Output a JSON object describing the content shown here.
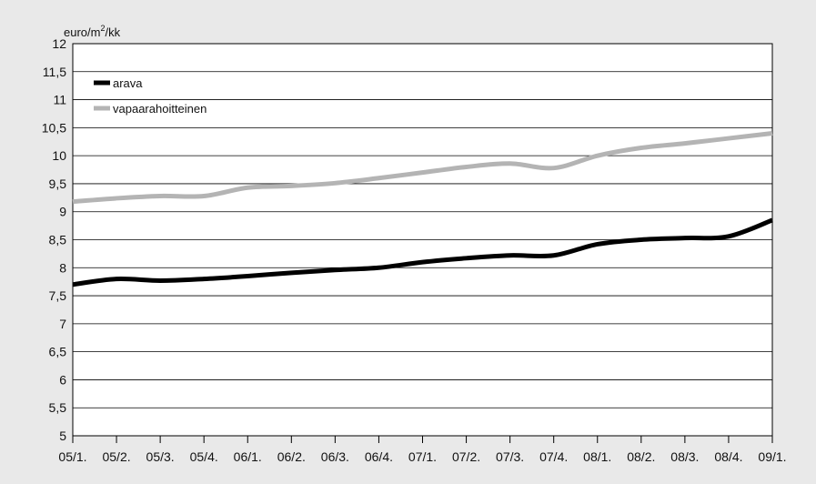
{
  "chart_data": {
    "type": "line",
    "ylabel_html": "euro/m²/kk",
    "ylabel": "euro/m2/kk",
    "y_unit_main": "euro/m",
    "y_unit_sup": "2",
    "y_unit_tail": "/kk",
    "ylim": [
      5,
      12
    ],
    "y_ticks": [
      "12",
      "11,5",
      "11",
      "10,5",
      "10",
      "9,5",
      "9",
      "8,5",
      "8",
      "7,5",
      "7",
      "6,5",
      "6",
      "5,5",
      "5"
    ],
    "grid": true,
    "legend_placement": "top-left",
    "categories": [
      "05/1.",
      "05/2.",
      "05/3.",
      "05/4.",
      "06/1.",
      "06/2.",
      "06/3.",
      "06/4.",
      "07/1.",
      "07/2.",
      "07/3.",
      "07/4.",
      "08/1.",
      "08/2.",
      "08/3.",
      "08/4.",
      "09/1."
    ],
    "series": [
      {
        "name": "arava",
        "color": "#000000",
        "values": [
          7.7,
          7.8,
          7.77,
          7.8,
          7.85,
          7.91,
          7.96,
          8.0,
          8.1,
          8.17,
          8.22,
          8.22,
          8.42,
          8.5,
          8.53,
          8.56,
          8.85
        ]
      },
      {
        "name": "vapaarahoitteinen",
        "color": "#b4b4b4",
        "values": [
          9.18,
          9.24,
          9.28,
          9.28,
          9.43,
          9.46,
          9.51,
          9.6,
          9.7,
          9.8,
          9.86,
          9.78,
          10.0,
          10.14,
          10.22,
          10.31,
          10.4
        ]
      }
    ]
  }
}
